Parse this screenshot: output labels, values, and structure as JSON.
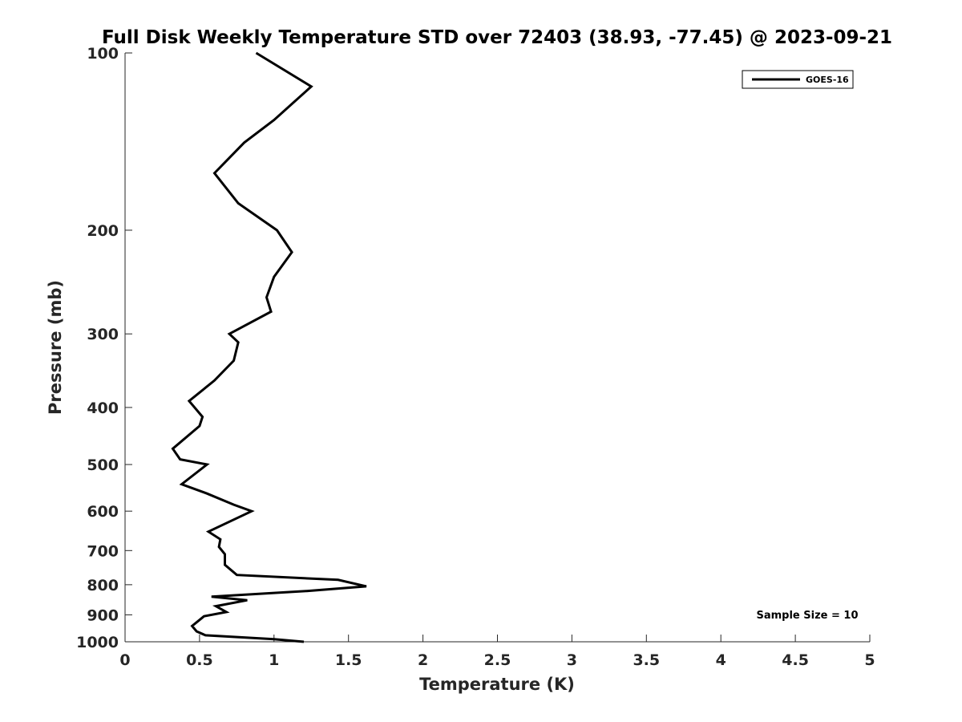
{
  "chart_data": {
    "type": "line",
    "title": "Full Disk Weekly Temperature STD over 72403 (38.93, -77.45) @ 2023-09-21",
    "xlabel": "Temperature (K)",
    "ylabel": "Pressure (mb)",
    "xlim": [
      0,
      5
    ],
    "ylim": [
      100,
      1000
    ],
    "y_scale": "log",
    "y_reversed": true,
    "x_ticks": [
      0,
      0.5,
      1,
      1.5,
      2,
      2.5,
      3,
      3.5,
      4,
      4.5,
      5
    ],
    "x_tick_labels": [
      "0",
      "0.5",
      "1",
      "1.5",
      "2",
      "2.5",
      "3",
      "3.5",
      "4",
      "4.5",
      "5"
    ],
    "y_ticks": [
      100,
      200,
      300,
      400,
      500,
      600,
      700,
      800,
      900,
      1000
    ],
    "y_tick_labels": [
      "100",
      "200",
      "300",
      "400",
      "500",
      "600",
      "700",
      "800",
      "900",
      "1000"
    ],
    "grid": false,
    "legend_position": "top-right",
    "series": [
      {
        "name": "GOES-16",
        "color": "#000000",
        "x": [
          0.88,
          1.25,
          1.0,
          0.8,
          0.6,
          0.76,
          1.02,
          1.12,
          1.0,
          0.95,
          0.98,
          0.7,
          0.76,
          0.73,
          0.6,
          0.43,
          0.52,
          0.5,
          0.32,
          0.37,
          0.55,
          0.38,
          0.55,
          0.73,
          0.85,
          0.56,
          0.64,
          0.63,
          0.67,
          0.67,
          0.75,
          1.43,
          1.62,
          1.22,
          0.58,
          0.82,
          0.61,
          0.68,
          0.53,
          0.45,
          0.48,
          0.54,
          1.0,
          1.2
        ],
        "y": [
          100,
          114,
          130,
          142,
          160,
          180,
          200,
          218,
          240,
          260,
          275,
          300,
          310,
          333,
          360,
          390,
          415,
          430,
          470,
          490,
          500,
          540,
          560,
          585,
          600,
          650,
          670,
          690,
          710,
          740,
          770,
          785,
          805,
          820,
          838,
          850,
          870,
          890,
          905,
          940,
          960,
          975,
          990,
          1000
        ]
      }
    ],
    "annotations": [
      "Sample Size = 10"
    ]
  }
}
